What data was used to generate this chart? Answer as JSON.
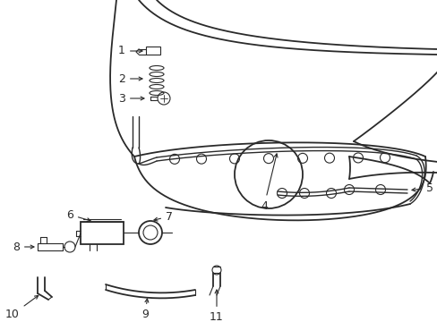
{
  "background_color": "#ffffff",
  "line_color": "#2a2a2a",
  "text_color": "#000000",
  "figsize": [
    4.89,
    3.6
  ],
  "dpi": 100
}
